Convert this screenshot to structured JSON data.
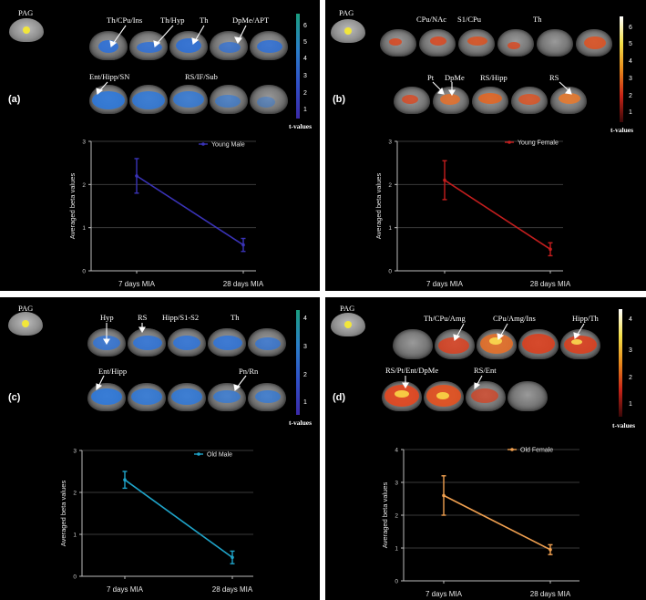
{
  "panels": [
    {
      "id": "a",
      "letter": "(a)",
      "pag_label": "PAG",
      "theme": "blue",
      "brain_labels": [
        "Th/CPu/Ins",
        "Th/Hyp",
        "Th",
        "DpMe/APT",
        "Ent/Hipp/SN",
        "RS/IF/Sub"
      ],
      "colorbar": {
        "label": "t-values",
        "ticks": [
          "6",
          "5",
          "4",
          "3",
          "2",
          "1"
        ],
        "gradient": [
          "#1a9e7f",
          "#2a7fc8",
          "#3050c8",
          "#3b2aa8"
        ]
      },
      "legend_label": "Young Male",
      "color": "#3a33b8"
    },
    {
      "id": "b",
      "letter": "(b)",
      "pag_label": "PAG",
      "theme": "red",
      "brain_labels": [
        "CPu/NAc",
        "S1/CPu",
        "Th",
        "Pt",
        "DpMe",
        "RS/Hipp",
        "RS"
      ],
      "colorbar": {
        "label": "t-values",
        "ticks": [
          "6",
          "5",
          "4",
          "3",
          "2",
          "1"
        ],
        "gradient": [
          "#ffffff",
          "#f4e04a",
          "#e88a1c",
          "#c82418",
          "#3a0808"
        ]
      },
      "legend_label": "Young Female",
      "color": "#c41e1e"
    },
    {
      "id": "c",
      "letter": "(c)",
      "pag_label": "PAG",
      "theme": "blue",
      "brain_labels": [
        "Hyp",
        "RS",
        "Hipp/S1-S2",
        "Th",
        "Ent/Hipp",
        "Pn/Rn"
      ],
      "colorbar": {
        "label": "t-values",
        "ticks": [
          "4",
          "3",
          "2",
          "1"
        ],
        "gradient": [
          "#1a9e7f",
          "#2a7fc8",
          "#3050c8",
          "#3b2aa8"
        ]
      },
      "legend_label": "Old Male",
      "color": "#1fa3c8"
    },
    {
      "id": "d",
      "letter": "(d)",
      "pag_label": "PAG",
      "theme": "red",
      "brain_labels": [
        "Th/CPu/Amg",
        "CPu/Amg/Ins",
        "Hipp/Th",
        "RS/Pt/Ent/DpMe",
        "RS/Ent"
      ],
      "colorbar": {
        "label": "t-values",
        "ticks": [
          "4",
          "3",
          "2",
          "1"
        ],
        "gradient": [
          "#ffffff",
          "#f4e04a",
          "#e88a1c",
          "#c82418",
          "#3a0808"
        ]
      },
      "legend_label": "Old Female",
      "color": "#f0a050"
    }
  ],
  "chart_data": [
    {
      "type": "line",
      "categories": [
        "7 days MIA",
        "28 days MIA"
      ],
      "series": [
        {
          "name": "Young Male",
          "values": [
            2.2,
            0.6
          ],
          "errors": [
            0.4,
            0.15
          ]
        }
      ],
      "ylabel": "Averaged beta values",
      "yticks": [
        "0",
        "1",
        "2",
        "3"
      ],
      "ylim": [
        0,
        3
      ],
      "grid": true
    },
    {
      "type": "line",
      "categories": [
        "7 days MIA",
        "28 days MIA"
      ],
      "series": [
        {
          "name": "Young Female",
          "values": [
            2.1,
            0.5
          ],
          "errors": [
            0.45,
            0.15
          ]
        }
      ],
      "ylabel": "Averaged beta values",
      "yticks": [
        "0",
        "1",
        "2",
        "3"
      ],
      "ylim": [
        0,
        3
      ],
      "grid": true
    },
    {
      "type": "line",
      "categories": [
        "7 days MIA",
        "28 days MIA"
      ],
      "series": [
        {
          "name": "Old Male",
          "values": [
            2.3,
            0.45
          ],
          "errors": [
            0.2,
            0.15
          ]
        }
      ],
      "ylabel": "Averaged beta values",
      "yticks": [
        "0",
        "1",
        "2",
        "3"
      ],
      "ylim": [
        0,
        3
      ],
      "grid": true
    },
    {
      "type": "line",
      "categories": [
        "7 days MIA",
        "28 days MIA"
      ],
      "series": [
        {
          "name": "Old Female",
          "values": [
            2.6,
            0.95
          ],
          "errors": [
            0.6,
            0.15
          ]
        }
      ],
      "ylabel": "Averaged beta values",
      "yticks": [
        "0",
        "1",
        "2",
        "3",
        "4"
      ],
      "ylim": [
        0,
        4
      ],
      "grid": true
    }
  ]
}
